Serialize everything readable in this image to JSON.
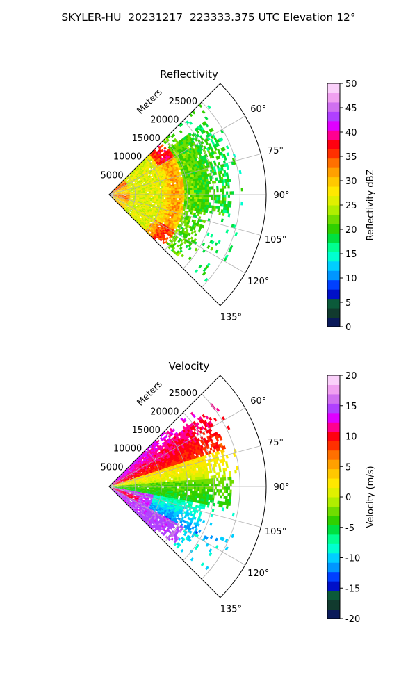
{
  "figure_title": "SKYLER-HU  20231217  223333.375 UTC Elevation 12°",
  "chart_data": [
    {
      "type": "heatmap",
      "title": "Reflectivity",
      "projection": "polar sector (PPI)",
      "range_label": "Meters",
      "range_ticks": [
        5000,
        10000,
        15000,
        20000,
        25000
      ],
      "range_max": 30000,
      "azimuth_ticks": [
        "60°",
        "75°",
        "90°",
        "105°",
        "120°",
        "135°"
      ],
      "azimuth_range_deg": [
        45,
        135
      ],
      "grid": true,
      "colorbar": {
        "label": "Reflectivity dBZ",
        "min": 0,
        "max": 50,
        "ticks": [
          0,
          5,
          10,
          15,
          20,
          25,
          30,
          35,
          40,
          45,
          50
        ],
        "colors": [
          "#0a1a5a",
          "#113a2e",
          "#0b5a3a",
          "#0010c8",
          "#0040ff",
          "#0096ff",
          "#00cfff",
          "#00ffd0",
          "#00ff90",
          "#00e040",
          "#30d000",
          "#70dd00",
          "#b0ee00",
          "#e0f000",
          "#ffe800",
          "#ffc800",
          "#ffa000",
          "#ff7000",
          "#ff3000",
          "#ff0010",
          "#ff0090",
          "#e000ff",
          "#b040ff",
          "#d070f0",
          "#f0a0f0",
          "#fad0fa"
        ]
      }
    },
    {
      "type": "heatmap",
      "title": "Velocity",
      "projection": "polar sector (PPI)",
      "range_label": "Meters",
      "range_ticks": [
        5000,
        10000,
        15000,
        20000,
        25000
      ],
      "range_max": 30000,
      "azimuth_ticks": [
        "60°",
        "75°",
        "90°",
        "105°",
        "120°",
        "135°"
      ],
      "azimuth_range_deg": [
        45,
        135
      ],
      "grid": true,
      "colorbar": {
        "label": "Velocity (m/s)",
        "min": -20,
        "max": 20,
        "ticks": [
          -20,
          -15,
          -10,
          -5,
          0,
          5,
          10,
          15,
          20
        ],
        "colors": [
          "#0a1a5a",
          "#113a2e",
          "#0b5a3a",
          "#0010c8",
          "#0040ff",
          "#0096ff",
          "#00cfff",
          "#00ffd0",
          "#00ff90",
          "#00e040",
          "#30d000",
          "#70dd00",
          "#b0ee00",
          "#e0f000",
          "#ffe800",
          "#ffc800",
          "#ffa000",
          "#ff7000",
          "#ff3000",
          "#ff0010",
          "#ff0090",
          "#e000ff",
          "#b040ff",
          "#d070f0",
          "#f0a0f0",
          "#fad0fa"
        ]
      }
    }
  ]
}
